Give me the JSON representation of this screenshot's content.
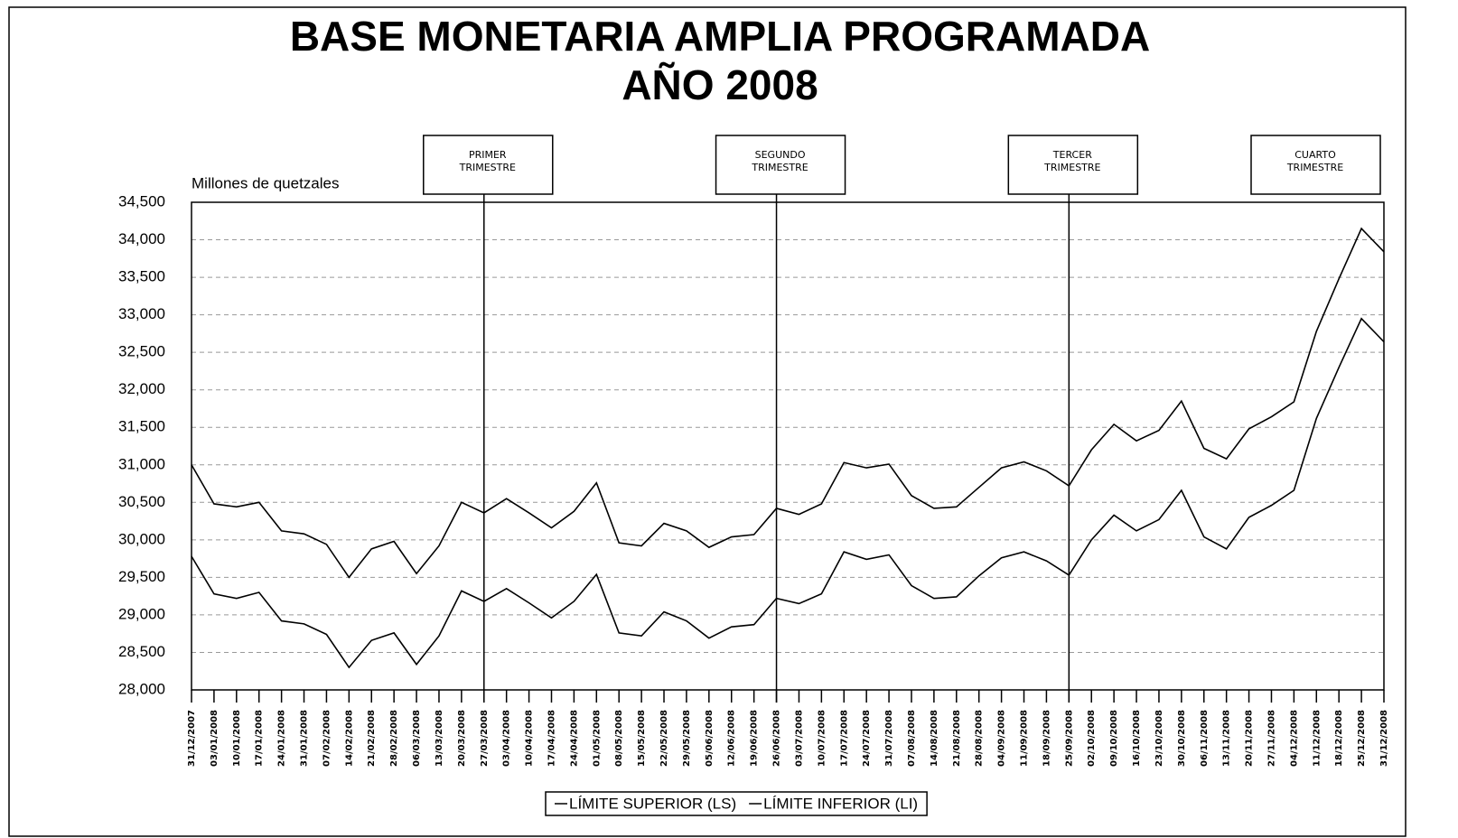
{
  "chart_data": {
    "type": "line",
    "title": "BASE MONETARIA AMPLIA PROGRAMADA",
    "subtitle": "AÑO 2008",
    "y_label": "Millones de quetzales",
    "categories": [
      "31/12/2007",
      "03/01/2008",
      "10/01/2008",
      "17/01/2008",
      "24/01/2008",
      "31/01/2008",
      "07/02/2008",
      "14/02/2008",
      "21/02/2008",
      "28/02/2008",
      "06/03/2008",
      "13/03/2008",
      "20/03/2008",
      "27/03/2008",
      "03/04/2008",
      "10/04/2008",
      "17/04/2008",
      "24/04/2008",
      "01/05/2008",
      "08/05/2008",
      "15/05/2008",
      "22/05/2008",
      "29/05/2008",
      "05/06/2008",
      "12/06/2008",
      "19/06/2008",
      "26/06/2008",
      "03/07/2008",
      "10/07/2008",
      "17/07/2008",
      "24/07/2008",
      "31/07/2008",
      "07/08/2008",
      "14/08/2008",
      "21/08/2008",
      "28/08/2008",
      "04/09/2008",
      "11/09/2008",
      "18/09/2008",
      "25/09/2008",
      "02/10/2008",
      "09/10/2008",
      "16/10/2008",
      "23/10/2008",
      "30/10/2008",
      "06/11/2008",
      "13/11/2008",
      "20/11/2008",
      "27/11/2008",
      "04/12/2008",
      "11/12/2008",
      "18/12/2008",
      "25/12/2008",
      "31/12/2008"
    ],
    "series": [
      {
        "name": "LÍMITE SUPERIOR (LS)",
        "color": "#000000",
        "values": [
          31000,
          30480,
          30440,
          30500,
          30120,
          30080,
          29940,
          29500,
          29880,
          29980,
          29550,
          29920,
          30500,
          30360,
          30550,
          30360,
          30160,
          30380,
          30760,
          29960,
          29920,
          30220,
          30120,
          29900,
          30040,
          30070,
          30420,
          30340,
          30480,
          31030,
          30960,
          31010,
          30590,
          30420,
          30440,
          30700,
          30960,
          31040,
          30920,
          30720,
          31200,
          31540,
          31320,
          31460,
          31850,
          31220,
          31080,
          31480,
          31640,
          31840,
          32780,
          33480,
          34150,
          33840
        ]
      },
      {
        "name": "LÍMITE INFERIOR (LI)",
        "color": "#000000",
        "values": [
          29780,
          29280,
          29220,
          29300,
          28920,
          28880,
          28740,
          28300,
          28660,
          28760,
          28340,
          28720,
          29320,
          29180,
          29350,
          29160,
          28960,
          29180,
          29540,
          28760,
          28720,
          29040,
          28920,
          28690,
          28840,
          28870,
          29220,
          29150,
          29280,
          29840,
          29740,
          29800,
          29390,
          29220,
          29240,
          29520,
          29760,
          29840,
          29720,
          29530,
          30000,
          30330,
          30120,
          30270,
          30660,
          30040,
          29880,
          30300,
          30460,
          30660,
          31620,
          32300,
          32950,
          32640
        ]
      }
    ],
    "ylim": [
      28000,
      34500
    ],
    "yticks": [
      {
        "value": 28000,
        "label": "28,000"
      },
      {
        "value": 28500,
        "label": "28,500"
      },
      {
        "value": 29000,
        "label": "29,000"
      },
      {
        "value": 29500,
        "label": "29,500"
      },
      {
        "value": 30000,
        "label": "30,000"
      },
      {
        "value": 30500,
        "label": "30,500"
      },
      {
        "value": 31000,
        "label": "31,000"
      },
      {
        "value": 31500,
        "label": "31,500"
      },
      {
        "value": 32000,
        "label": "32,000"
      },
      {
        "value": 32500,
        "label": "32,500"
      },
      {
        "value": 33000,
        "label": "33,000"
      },
      {
        "value": 33500,
        "label": "33,500"
      },
      {
        "value": 34000,
        "label": "34,000"
      },
      {
        "value": 34500,
        "label": "34,500"
      }
    ],
    "grid": true,
    "quarter_markers": [
      {
        "lines": [
          "PRIMER",
          "TRIMESTRE"
        ],
        "at": "27/03/2008"
      },
      {
        "lines": [
          "SEGUNDO",
          "TRIMESTRE"
        ],
        "at": "26/06/2008"
      },
      {
        "lines": [
          "TERCER",
          "TRIMESTRE"
        ],
        "at": "25/09/2008"
      },
      {
        "lines": [
          "CUARTO",
          "TRIMESTRE"
        ],
        "at": "31/12/2008"
      }
    ],
    "legend": "bottom"
  }
}
